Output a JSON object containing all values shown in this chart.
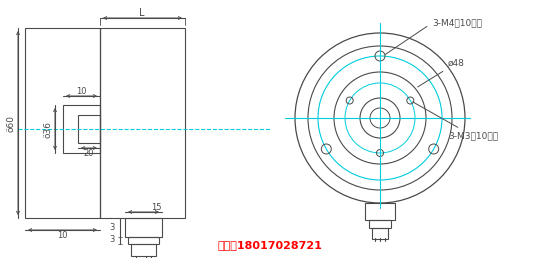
{
  "bg_color": "#ffffff",
  "line_color": "#4a4a4a",
  "cyan_color": "#00ccdd",
  "red_color": "#ff0000",
  "phone_text": "手机：18017028721",
  "label_3M4": "3-M4深10均布",
  "label_phi48": "ø48",
  "label_3M3": "3-M3深10均布",
  "label_phi60": "ö60",
  "label_phi36": "ö36",
  "label_L": "L",
  "label_10a": "10",
  "label_20": "20",
  "label_10b": "10",
  "label_15": "15",
  "label_3a": "3",
  "label_3b": "3"
}
